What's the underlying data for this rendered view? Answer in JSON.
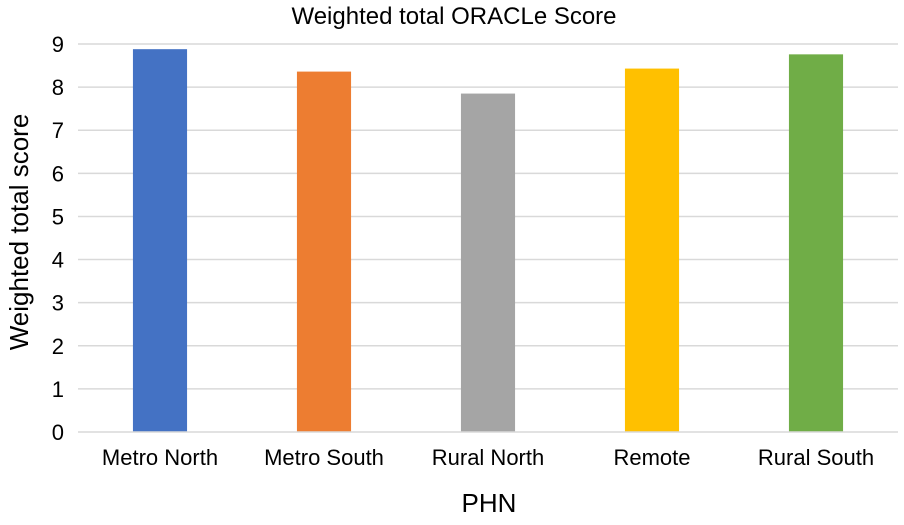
{
  "chart_data": {
    "type": "bar",
    "title": "Weighted total ORACLe Score",
    "xlabel": "PHN",
    "ylabel": "Weighted total score",
    "categories": [
      "Metro North",
      "Metro South",
      "Rural North",
      "Remote",
      "Rural South"
    ],
    "values": [
      8.88,
      8.36,
      7.85,
      8.43,
      8.76
    ],
    "colors": [
      "#4472C4",
      "#ED7D31",
      "#A5A5A5",
      "#FFC000",
      "#70AD47"
    ],
    "ylim": [
      0,
      9
    ],
    "yticks": [
      "0",
      "1",
      "2",
      "3",
      "4",
      "5",
      "6",
      "7",
      "8",
      "9"
    ],
    "grid": true,
    "gridColor": "#D9D9D9",
    "legend": "none"
  }
}
